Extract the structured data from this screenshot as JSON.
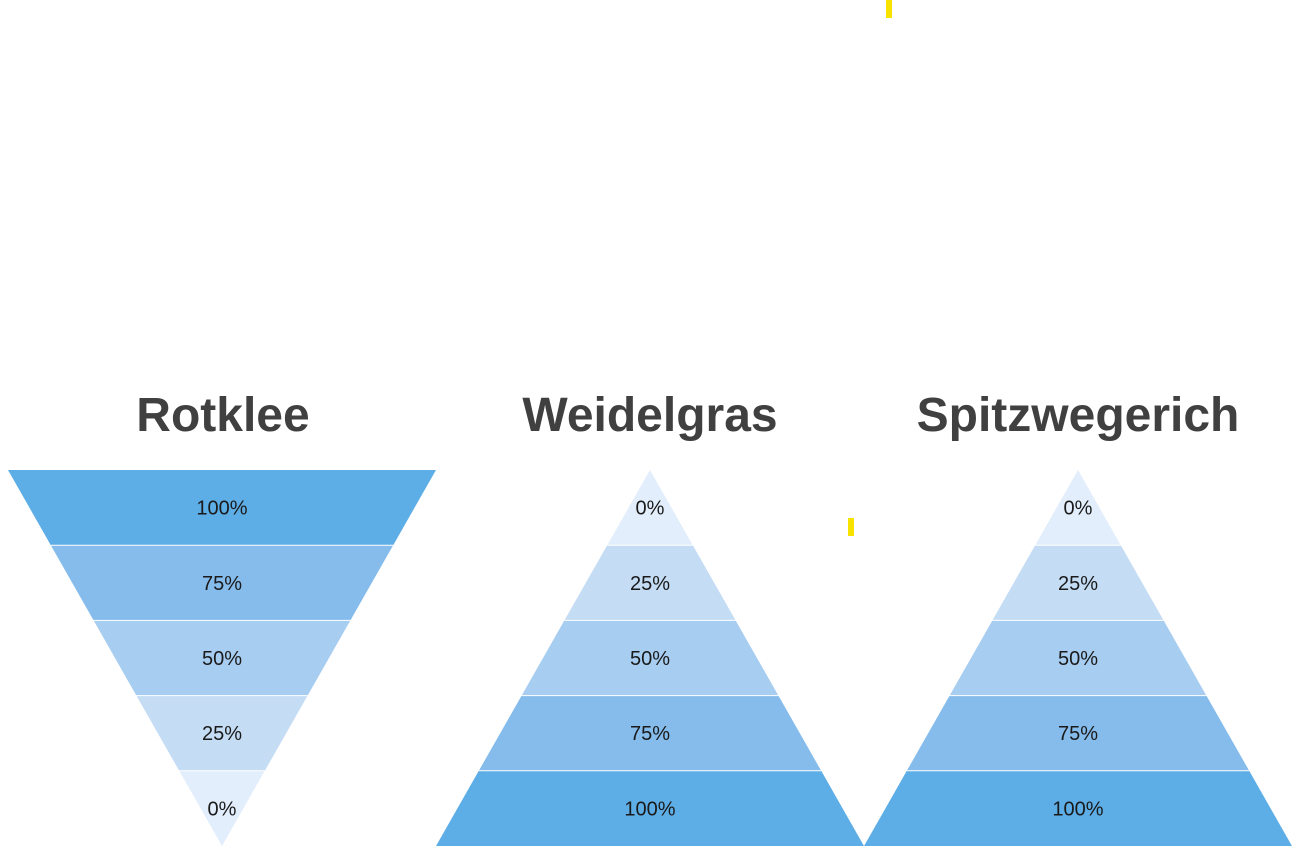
{
  "colors": {
    "band_100": "#5dade6",
    "band_75": "#85bcec",
    "band_50": "#a7cdf1",
    "band_25": "#c4dcf4",
    "band_0": "#e2eefb",
    "title": "#404040",
    "label": "#1a1a1a",
    "marker": "#f7e200"
  },
  "pyramids": [
    {
      "title": "Rotklee",
      "orientation": "inverted",
      "levels": [
        {
          "label": "100%",
          "value": 100
        },
        {
          "label": "75%",
          "value": 75
        },
        {
          "label": "50%",
          "value": 50
        },
        {
          "label": "25%",
          "value": 25
        },
        {
          "label": "0%",
          "value": 0
        }
      ]
    },
    {
      "title": "Weidelgras",
      "orientation": "upright",
      "levels": [
        {
          "label": "0%",
          "value": 0
        },
        {
          "label": "25%",
          "value": 25
        },
        {
          "label": "50%",
          "value": 50
        },
        {
          "label": "75%",
          "value": 75
        },
        {
          "label": "100%",
          "value": 100
        }
      ]
    },
    {
      "title": "Spitzwegerich",
      "orientation": "upright",
      "levels": [
        {
          "label": "0%",
          "value": 0
        },
        {
          "label": "25%",
          "value": 25
        },
        {
          "label": "50%",
          "value": 50
        },
        {
          "label": "75%",
          "value": 75
        },
        {
          "label": "100%",
          "value": 100
        }
      ]
    }
  ]
}
